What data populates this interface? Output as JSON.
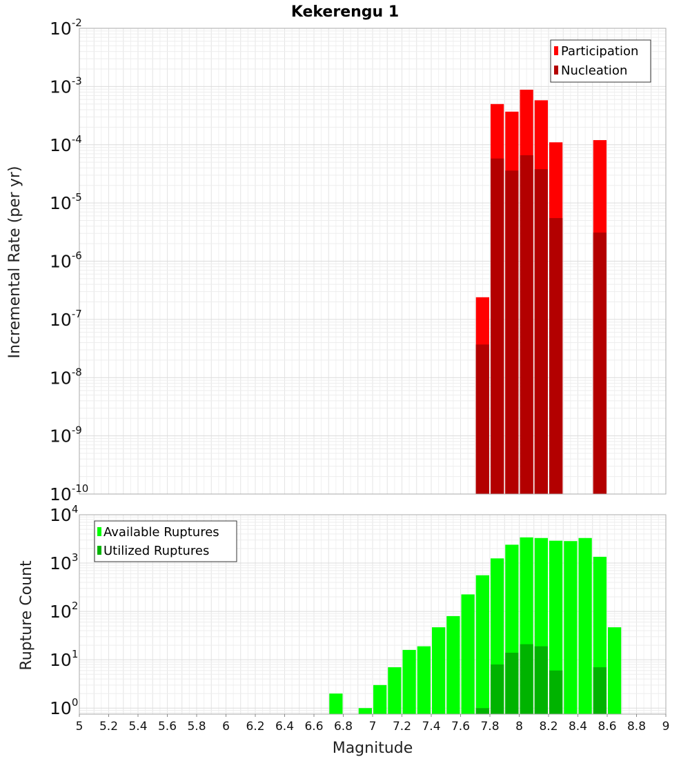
{
  "chart_data": [
    {
      "type": "bar",
      "title": "Kekerengu 1",
      "xlabel": "",
      "ylabel": "Incremental Rate (per yr)",
      "yscale": "log",
      "xlim": [
        5,
        9
      ],
      "ylim": [
        1e-10,
        0.01
      ],
      "bin_width": 0.1,
      "y_ticks": [
        {
          "base": "10",
          "exp": "-10"
        },
        {
          "base": "10",
          "exp": "-9"
        },
        {
          "base": "10",
          "exp": "-8"
        },
        {
          "base": "10",
          "exp": "-7"
        },
        {
          "base": "10",
          "exp": "-6"
        },
        {
          "base": "10",
          "exp": "-5"
        },
        {
          "base": "10",
          "exp": "-4"
        },
        {
          "base": "10",
          "exp": "-3"
        },
        {
          "base": "10",
          "exp": "-2"
        }
      ],
      "legend_position": "top-right",
      "series": [
        {
          "name": "Participation",
          "color": "#ff0000",
          "x": [
            7.75,
            7.85,
            7.95,
            8.05,
            8.15,
            8.25,
            8.55
          ],
          "values": [
            2.4e-07,
            0.0005,
            0.00037,
            0.00088,
            0.00058,
            0.00011,
            0.00012
          ]
        },
        {
          "name": "Nucleation",
          "color": "#b30000",
          "x": [
            7.75,
            7.85,
            7.95,
            8.05,
            8.15,
            8.25,
            8.55
          ],
          "values": [
            3.7e-08,
            5.8e-05,
            3.6e-05,
            6.6e-05,
            3.8e-05,
            5.5e-06,
            3.1e-06
          ]
        }
      ]
    },
    {
      "type": "bar",
      "title": "",
      "xlabel": "Magnitude",
      "ylabel": "Rupture Count",
      "yscale": "log",
      "xlim": [
        5,
        9
      ],
      "ylim": [
        0.75,
        10000
      ],
      "bin_width": 0.1,
      "x_ticks": [
        "5",
        "5.2",
        "5.4",
        "5.6",
        "5.8",
        "6",
        "6.2",
        "6.4",
        "6.6",
        "6.8",
        "7",
        "7.2",
        "7.4",
        "7.6",
        "7.8",
        "8",
        "8.2",
        "8.4",
        "8.6",
        "8.8",
        "9"
      ],
      "y_ticks": [
        {
          "base": "10",
          "exp": "0"
        },
        {
          "base": "10",
          "exp": "1"
        },
        {
          "base": "10",
          "exp": "2"
        },
        {
          "base": "10",
          "exp": "3"
        },
        {
          "base": "10",
          "exp": "4"
        }
      ],
      "legend_position": "top-left",
      "series": [
        {
          "name": "Available Ruptures",
          "color": "#00ff00",
          "x": [
            6.75,
            6.95,
            7.05,
            7.15,
            7.25,
            7.35,
            7.45,
            7.55,
            7.65,
            7.75,
            7.85,
            7.95,
            8.05,
            8.15,
            8.25,
            8.35,
            8.45,
            8.55,
            8.65
          ],
          "values": [
            2,
            1,
            3,
            7,
            16,
            19,
            47,
            80,
            225,
            560,
            1250,
            2400,
            3400,
            3300,
            2900,
            2850,
            3300,
            1350,
            47
          ]
        },
        {
          "name": "Utilized Ruptures",
          "color": "#00b300",
          "x": [
            7.75,
            7.85,
            7.95,
            8.05,
            8.15,
            8.25,
            8.55
          ],
          "values": [
            1,
            8,
            14,
            21,
            19,
            6,
            7
          ]
        }
      ]
    }
  ]
}
